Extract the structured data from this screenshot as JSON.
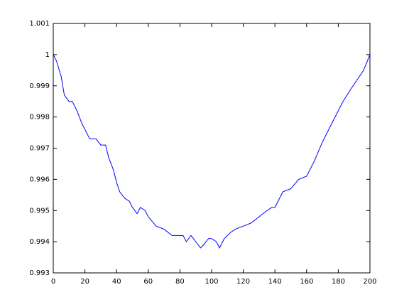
{
  "chart_data": {
    "type": "line",
    "x": [
      0,
      2,
      5,
      7,
      10,
      12,
      15,
      18,
      20,
      23,
      27,
      30,
      33,
      35,
      38,
      40,
      42,
      45,
      48,
      50,
      53,
      55,
      58,
      60,
      65,
      70,
      75,
      78,
      82,
      84,
      87,
      90,
      93,
      95,
      98,
      100,
      103,
      105,
      108,
      112,
      115,
      120,
      125,
      130,
      135,
      138,
      140,
      145,
      150,
      155,
      160,
      165,
      170,
      175,
      180,
      183,
      188,
      192,
      196,
      200
    ],
    "series": [
      {
        "color": "#0000ff",
        "values": [
          1.0,
          0.9998,
          0.9993,
          0.9987,
          0.9985,
          0.9985,
          0.9982,
          0.9978,
          0.9976,
          0.9973,
          0.9973,
          0.9971,
          0.9971,
          0.9967,
          0.9963,
          0.9959,
          0.9956,
          0.9954,
          0.9953,
          0.9951,
          0.9949,
          0.9951,
          0.995,
          0.9948,
          0.9945,
          0.9944,
          0.9942,
          0.9942,
          0.9942,
          0.994,
          0.9942,
          0.994,
          0.9938,
          0.9939,
          0.9941,
          0.9941,
          0.994,
          0.9938,
          0.9941,
          0.9943,
          0.9944,
          0.9945,
          0.9946,
          0.9948,
          0.995,
          0.9951,
          0.9951,
          0.9956,
          0.9957,
          0.996,
          0.9961,
          0.9966,
          0.9972,
          0.9977,
          0.9982,
          0.9985,
          0.9989,
          0.9992,
          0.9995,
          1.0
        ]
      }
    ],
    "xlim": [
      0,
      200
    ],
    "xticks": [
      0,
      20,
      40,
      60,
      80,
      100,
      120,
      140,
      160,
      180,
      200
    ],
    "ylim": [
      0.993,
      1.001
    ],
    "yticks": [
      0.993,
      0.994,
      0.995,
      0.996,
      0.997,
      0.998,
      0.999,
      1,
      1.001
    ],
    "grid": false
  }
}
